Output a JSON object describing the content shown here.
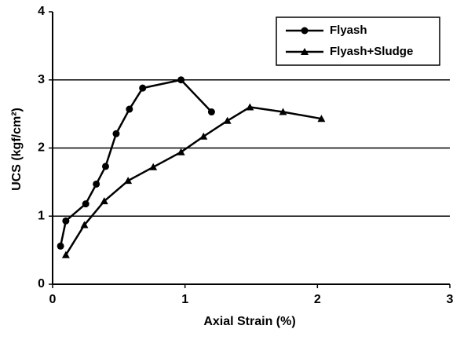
{
  "chart_data": {
    "type": "line",
    "xlabel": "Axial Strain (%)",
    "ylabel": "UCS (kgf/cm²)",
    "xlim": [
      0,
      3
    ],
    "xticks": [
      0,
      1,
      2,
      3
    ],
    "ylim": [
      0,
      4
    ],
    "yticks": [
      0,
      1,
      2,
      3,
      4
    ],
    "grid": "y",
    "legend": "upper right",
    "series": [
      {
        "name": "Flyash",
        "color": "#000000",
        "marker": "circle",
        "x": [
          0.06,
          0.1,
          0.25,
          0.33,
          0.4,
          0.48,
          0.58,
          0.68,
          0.97,
          1.2
        ],
        "values": [
          0.56,
          0.93,
          1.18,
          1.47,
          1.73,
          2.21,
          2.57,
          2.88,
          3.0,
          2.53
        ]
      },
      {
        "name": "Flyash+Sludge",
        "color": "#000000",
        "marker": "triangle",
        "x": [
          0.1,
          0.24,
          0.39,
          0.57,
          0.76,
          0.97,
          1.14,
          1.32,
          1.49,
          1.74,
          2.03
        ],
        "values": [
          0.43,
          0.87,
          1.22,
          1.52,
          1.72,
          1.94,
          2.17,
          2.4,
          2.6,
          2.53,
          2.43
        ]
      }
    ]
  }
}
